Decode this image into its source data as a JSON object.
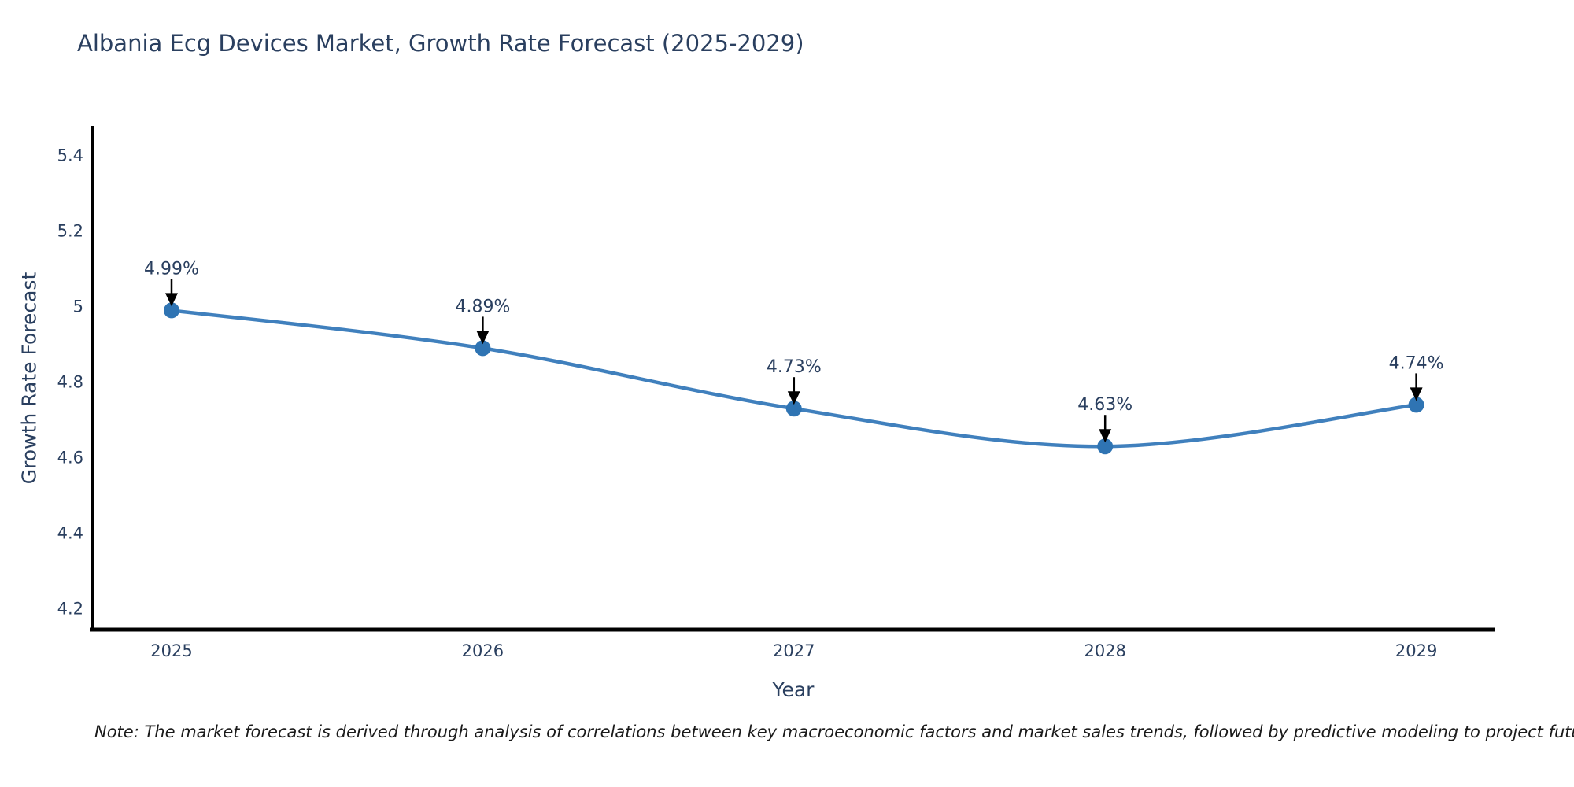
{
  "title": "Albania Ecg Devices Market, Growth Rate Forecast (2025-2029)",
  "note": "Note: The market forecast is derived through analysis of correlations between key macroeconomic factors and market sales trends, followed by predictive modeling to project future sales",
  "chart_data": {
    "type": "line",
    "title": "Albania Ecg Devices Market, Growth Rate Forecast (2025-2029)",
    "xlabel": "Year",
    "ylabel": "Growth Rate Forecast",
    "x": [
      2025,
      2026,
      2027,
      2028,
      2029
    ],
    "x_tick_labels": [
      "2025",
      "2026",
      "2027",
      "2028",
      "2029"
    ],
    "series": [
      {
        "name": "Growth Rate Forecast",
        "values": [
          4.99,
          4.89,
          4.73,
          4.63,
          4.74
        ],
        "point_labels": [
          "4.99%",
          "4.89%",
          "4.73%",
          "4.63%",
          "4.74%"
        ]
      }
    ],
    "yticks": [
      4.2,
      4.4,
      4.6,
      4.8,
      5,
      5.2,
      5.4
    ],
    "ytick_labels": [
      "4.2",
      "4.4",
      "4.6",
      "4.8",
      "5",
      "5.2",
      "5.4"
    ],
    "ylim": [
      4.145,
      5.48
    ],
    "grid": false,
    "legend": "none",
    "line_smoothing": "spline",
    "colors": {
      "line": "#4080bd",
      "marker": "#2f74b3",
      "axis": "#000000",
      "text": "#2a3f5f",
      "annotation_arrow": "#000000"
    }
  }
}
